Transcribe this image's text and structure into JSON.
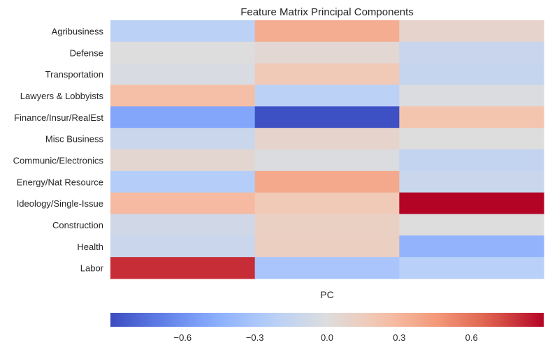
{
  "chart_data": {
    "type": "heatmap",
    "title": "Feature Matrix Principal Components",
    "xlabel": "PC",
    "ylabel": "",
    "rows": [
      "Agribusiness",
      "Defense",
      "Transportation",
      "Lawyers & Lobbyists",
      "Finance/Insur/RealEst",
      "Misc Business",
      "Communic/Electronics",
      "Energy/Nat Resource",
      "Ideology/Single-Issue",
      "Construction",
      "Health",
      "Labor"
    ],
    "columns": [
      "",
      "",
      ""
    ],
    "values": [
      [
        -0.2,
        0.35,
        0.08
      ],
      [
        0.0,
        0.05,
        -0.13
      ],
      [
        -0.03,
        0.18,
        -0.14
      ],
      [
        0.25,
        -0.2,
        -0.02
      ],
      [
        -0.5,
        -0.88,
        0.22
      ],
      [
        -0.12,
        0.08,
        0.0
      ],
      [
        0.06,
        -0.02,
        -0.16
      ],
      [
        -0.24,
        0.37,
        -0.12
      ],
      [
        0.28,
        0.18,
        0.92
      ],
      [
        -0.08,
        0.12,
        0.0
      ],
      [
        -0.12,
        0.13,
        -0.42
      ],
      [
        0.8,
        -0.3,
        -0.22
      ]
    ],
    "colorbar": {
      "colormap": "coolwarm",
      "vmin": -0.9,
      "vmax": 0.9,
      "ticks": [
        -0.6,
        -0.3,
        0.0,
        0.3,
        0.6
      ],
      "tick_labels": [
        "−0.6",
        "−0.3",
        "0.0",
        "0.3",
        "0.6"
      ],
      "orientation": "horizontal",
      "placement": "bottom"
    },
    "grid": false
  }
}
